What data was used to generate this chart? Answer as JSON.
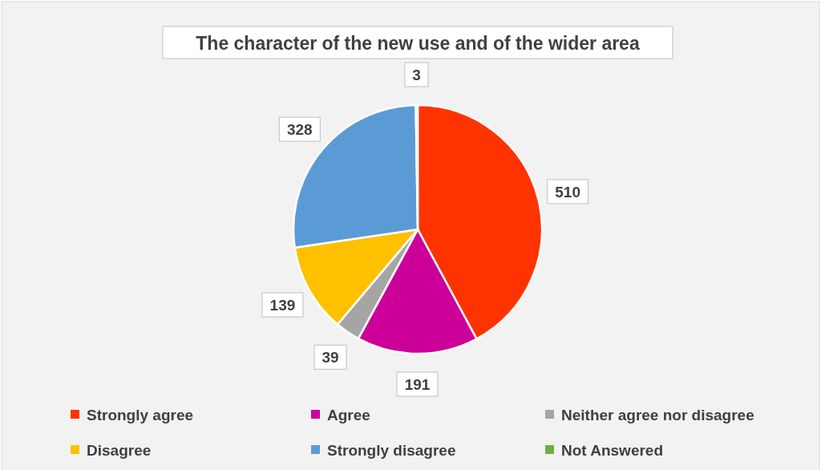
{
  "chart_data": {
    "type": "pie",
    "title": "The character of the new use and of the wider area",
    "categories": [
      "Strongly agree",
      "Agree",
      "Neither agree nor disagree",
      "Disagree",
      "Strongly disagree",
      "Not Answered"
    ],
    "values": [
      510,
      191,
      39,
      139,
      328,
      3
    ],
    "colors": [
      "#ff3300",
      "#cc0099",
      "#a5a5a5",
      "#ffc000",
      "#5b9bd5",
      "#70ad47"
    ],
    "data_labels": true,
    "legend": "bottom"
  }
}
